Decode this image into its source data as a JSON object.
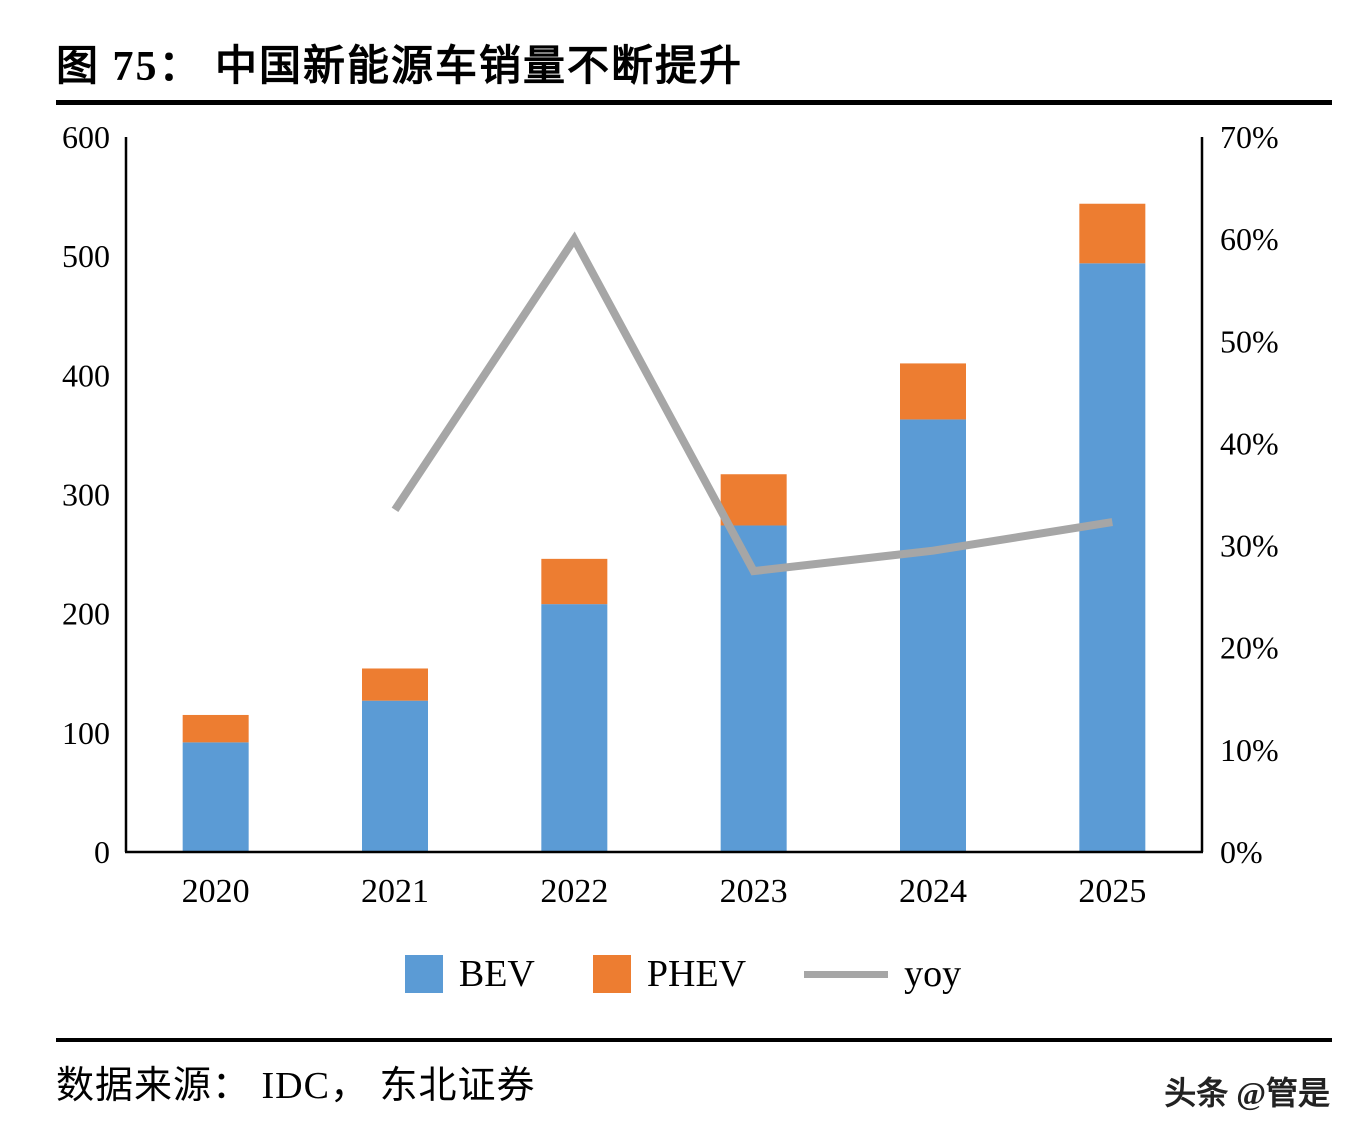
{
  "figure": {
    "number_label": "图 75：",
    "title": "图 75： 中国新能源车销量不断提升",
    "source": "数据来源： IDC， 东北证券",
    "watermark": "头条 @管是"
  },
  "chart_data": {
    "type": "bar",
    "subtype": "stacked-bar-with-line",
    "title": "图 75： 中国新能源车销量不断提升",
    "categories": [
      "2020",
      "2021",
      "2022",
      "2023",
      "2024",
      "2025"
    ],
    "series": [
      {
        "name": "BEV",
        "type": "bar",
        "axis": "left",
        "color": "#5B9BD5",
        "values": [
          92,
          127,
          208,
          274,
          363,
          494
        ]
      },
      {
        "name": "PHEV",
        "type": "bar",
        "axis": "left",
        "color": "#ED7D31",
        "values": [
          23,
          27,
          38,
          43,
          47,
          50
        ]
      },
      {
        "name": "yoy",
        "type": "line",
        "axis": "right",
        "color": "#A6A6A6",
        "values": [
          null,
          33.5,
          60,
          27.5,
          29.5,
          32.3
        ]
      }
    ],
    "left_axis": {
      "min": 0,
      "max": 600,
      "step": 100,
      "tick_labels": [
        "0",
        "100",
        "200",
        "300",
        "400",
        "500",
        "600"
      ]
    },
    "right_axis": {
      "min": 0,
      "max": 70,
      "step": 10,
      "unit": "%",
      "tick_labels": [
        "0%",
        "10%",
        "20%",
        "30%",
        "40%",
        "50%",
        "60%",
        "70%"
      ]
    },
    "legend_position": "bottom",
    "grid": false,
    "xlabel": "",
    "ylabel": ""
  }
}
